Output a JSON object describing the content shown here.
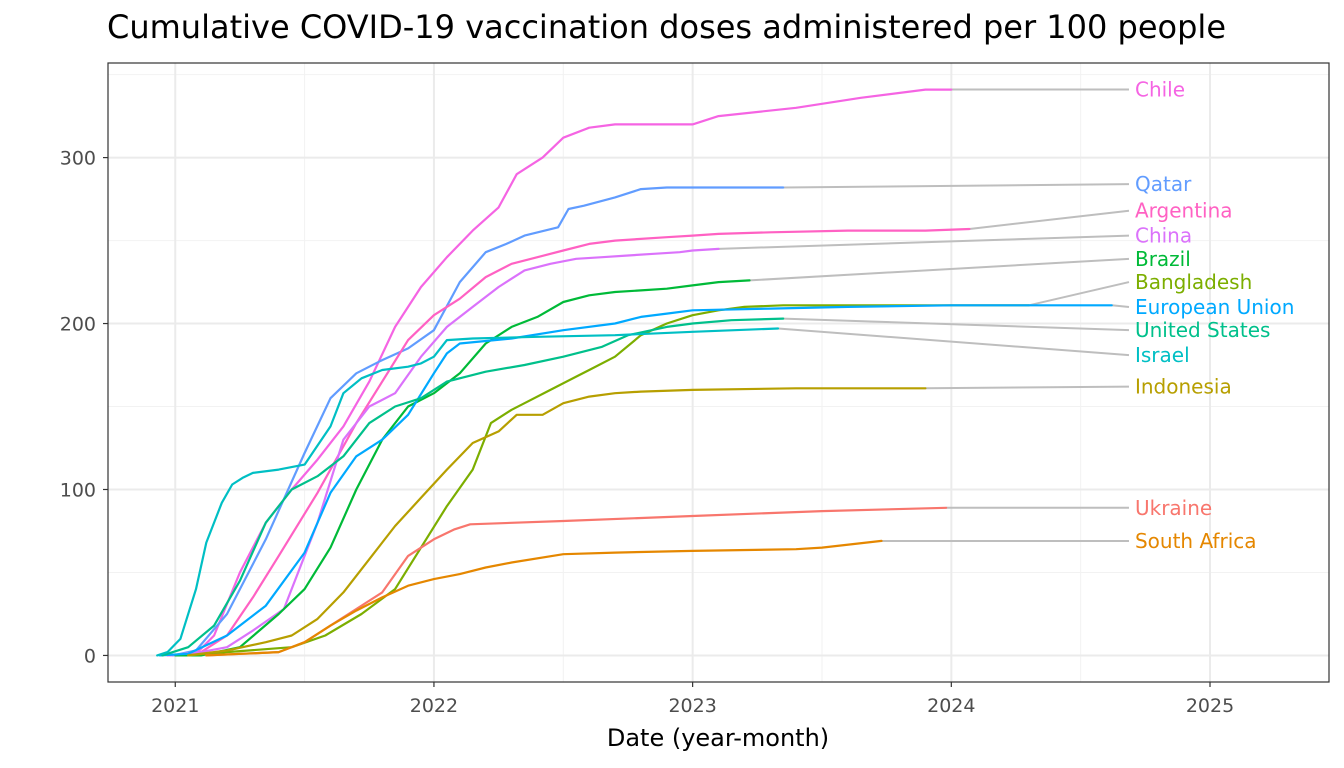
{
  "chart_data": {
    "type": "line",
    "title": "Cumulative COVID-19 vaccination doses administered per 100 people",
    "xlabel": "Date (year-month)",
    "ylabel": "",
    "xlim": [
      2020.74,
      2025.46
    ],
    "ylim": [
      -16,
      357
    ],
    "x_ticks": [
      2021,
      2022,
      2023,
      2024,
      2025
    ],
    "x_tick_labels": [
      "2021",
      "2022",
      "2023",
      "2024",
      "2025"
    ],
    "y_ticks": [
      0,
      100,
      200,
      300
    ],
    "y_tick_labels": [
      "0",
      "100",
      "200",
      "300"
    ],
    "grid": true,
    "label_column_x": 2024.71,
    "series": [
      {
        "name": "Chile",
        "color": "#F564E3",
        "x": [
          2020.97,
          2021.08,
          2021.15,
          2021.25,
          2021.35,
          2021.45,
          2021.55,
          2021.65,
          2021.75,
          2021.85,
          2021.95,
          2022.05,
          2022.15,
          2022.25,
          2022.32,
          2022.42,
          2022.5,
          2022.6,
          2022.7,
          2022.8,
          2023.0,
          2023.1,
          2023.4,
          2023.65,
          2023.9,
          2024.0
        ],
        "values": [
          0,
          1,
          12,
          50,
          80,
          100,
          118,
          138,
          165,
          198,
          222,
          240,
          256,
          270,
          290,
          300,
          312,
          318,
          320,
          320,
          320,
          325,
          330,
          336,
          341,
          341
        ],
        "label_y": 341
      },
      {
        "name": "Qatar",
        "color": "#619CFF",
        "x": [
          2020.99,
          2021.08,
          2021.2,
          2021.35,
          2021.5,
          2021.6,
          2021.7,
          2021.8,
          2021.9,
          2022.0,
          2022.1,
          2022.2,
          2022.28,
          2022.35,
          2022.48,
          2022.52,
          2022.58,
          2022.7,
          2022.8,
          2022.9,
          2023.0,
          2023.35
        ],
        "values": [
          0,
          3,
          25,
          70,
          122,
          155,
          170,
          178,
          185,
          196,
          225,
          243,
          248,
          253,
          258,
          269,
          271,
          276,
          281,
          282,
          282,
          282
        ],
        "label_y": 284
      },
      {
        "name": "Argentina",
        "color": "#FF61C3",
        "x": [
          2021.0,
          2021.1,
          2021.2,
          2021.3,
          2021.4,
          2021.55,
          2021.7,
          2021.8,
          2021.9,
          2022.0,
          2022.1,
          2022.2,
          2022.3,
          2022.4,
          2022.5,
          2022.6,
          2022.7,
          2022.9,
          2023.0,
          2023.1,
          2023.3,
          2023.6,
          2023.9,
          2024.07
        ],
        "values": [
          0,
          2,
          12,
          35,
          60,
          98,
          140,
          165,
          190,
          205,
          215,
          228,
          236,
          240,
          244,
          248,
          250,
          252,
          253,
          254,
          255,
          256,
          256,
          257
        ],
        "label_y": 268
      },
      {
        "name": "China",
        "color": "#DB72FB",
        "x": [
          2020.98,
          2021.1,
          2021.2,
          2021.3,
          2021.42,
          2021.55,
          2021.65,
          2021.75,
          2021.85,
          2021.95,
          2022.05,
          2022.15,
          2022.25,
          2022.35,
          2022.45,
          2022.55,
          2022.65,
          2022.75,
          2022.85,
          2022.95,
          2023.0,
          2023.1
        ],
        "values": [
          0,
          2,
          5,
          15,
          28,
          80,
          130,
          150,
          158,
          180,
          198,
          210,
          222,
          232,
          236,
          239,
          240,
          241,
          242,
          243,
          244,
          245
        ],
        "label_y": 253
      },
      {
        "name": "Brazil",
        "color": "#00BA38",
        "x": [
          2021.0,
          2021.1,
          2021.25,
          2021.4,
          2021.5,
          2021.6,
          2021.7,
          2021.8,
          2021.9,
          2022.0,
          2022.1,
          2022.2,
          2022.3,
          2022.4,
          2022.5,
          2022.6,
          2022.7,
          2022.8,
          2022.9,
          2023.0,
          2023.1,
          2023.22
        ],
        "values": [
          0,
          0,
          5,
          25,
          40,
          65,
          100,
          130,
          150,
          158,
          170,
          188,
          198,
          204,
          213,
          217,
          219,
          220,
          221,
          223,
          225,
          226
        ],
        "label_y": 239
      },
      {
        "name": "Bangladesh",
        "color": "#7CAE00",
        "x": [
          2021.05,
          2021.2,
          2021.45,
          2021.58,
          2021.72,
          2021.85,
          2021.95,
          2022.05,
          2022.15,
          2022.22,
          2022.3,
          2022.35,
          2022.45,
          2022.55,
          2022.6,
          2022.7,
          2022.8,
          2022.9,
          2023.0,
          2023.1,
          2023.2,
          2023.35,
          2023.6,
          2024.0,
          2024.3
        ],
        "values": [
          0,
          2,
          5,
          12,
          25,
          40,
          65,
          90,
          112,
          140,
          148,
          152,
          160,
          168,
          172,
          180,
          193,
          200,
          205,
          208,
          210,
          211,
          211,
          211,
          211
        ],
        "label_y": 225
      },
      {
        "name": "European Union",
        "color": "#00A9FF",
        "x": [
          2020.94,
          2021.05,
          2021.2,
          2021.35,
          2021.5,
          2021.6,
          2021.7,
          2021.8,
          2021.9,
          2022.0,
          2022.05,
          2022.1,
          2022.3,
          2022.5,
          2022.7,
          2022.8,
          2022.9,
          2023.0,
          2023.3,
          2023.6,
          2024.0,
          2024.3,
          2024.62
        ],
        "values": [
          0,
          1,
          12,
          30,
          62,
          98,
          120,
          130,
          145,
          170,
          182,
          188,
          191,
          196,
          200,
          204,
          206,
          208,
          209,
          210,
          211,
          211,
          211
        ],
        "label_y": 210
      },
      {
        "name": "United States",
        "color": "#00C08B",
        "x": [
          2020.95,
          2021.05,
          2021.15,
          2021.25,
          2021.35,
          2021.45,
          2021.55,
          2021.65,
          2021.75,
          2021.85,
          2021.95,
          2022.05,
          2022.2,
          2022.35,
          2022.5,
          2022.65,
          2022.75,
          2022.9,
          2023.0,
          2023.15,
          2023.35
        ],
        "values": [
          0,
          5,
          18,
          45,
          80,
          100,
          108,
          120,
          140,
          150,
          155,
          165,
          171,
          175,
          180,
          186,
          193,
          198,
          200,
          202,
          203
        ],
        "label_y": 196
      },
      {
        "name": "Israel",
        "color": "#00BFC4",
        "x": [
          2020.93,
          2020.97,
          2021.02,
          2021.08,
          2021.12,
          2021.18,
          2021.22,
          2021.26,
          2021.3,
          2021.4,
          2021.5,
          2021.6,
          2021.65,
          2021.72,
          2021.8,
          2021.9,
          2021.95,
          2022.0,
          2022.05,
          2022.15,
          2022.4,
          2022.7,
          2023.0,
          2023.33
        ],
        "values": [
          0,
          2,
          10,
          40,
          68,
          92,
          103,
          107,
          110,
          112,
          115,
          138,
          158,
          167,
          172,
          174,
          176,
          180,
          190,
          191,
          192,
          193,
          195,
          197
        ],
        "label_y": 181
      },
      {
        "name": "Indonesia",
        "color": "#B79F00",
        "x": [
          2021.05,
          2021.2,
          2021.35,
          2021.45,
          2021.55,
          2021.65,
          2021.75,
          2021.85,
          2021.95,
          2022.05,
          2022.15,
          2022.25,
          2022.32,
          2022.42,
          2022.5,
          2022.6,
          2022.7,
          2022.8,
          2023.0,
          2023.4,
          2023.9
        ],
        "values": [
          0,
          3,
          8,
          12,
          22,
          38,
          58,
          78,
          95,
          112,
          128,
          135,
          145,
          145,
          152,
          156,
          158,
          159,
          160,
          161,
          161
        ],
        "label_y": 162
      },
      {
        "name": "Ukraine",
        "color": "#F8766D",
        "x": [
          2021.12,
          2021.4,
          2021.5,
          2021.6,
          2021.7,
          2021.8,
          2021.9,
          2022.0,
          2022.08,
          2022.14,
          2022.5,
          2023.0,
          2023.5,
          2023.98
        ],
        "values": [
          0,
          2,
          8,
          18,
          28,
          38,
          60,
          70,
          76,
          79,
          81,
          84,
          87,
          89
        ],
        "label_y": 89
      },
      {
        "name": "South Africa",
        "color": "#E58700",
        "x": [
          2021.12,
          2021.4,
          2021.5,
          2021.6,
          2021.7,
          2021.8,
          2021.9,
          2022.0,
          2022.1,
          2022.2,
          2022.3,
          2022.5,
          2022.7,
          2023.0,
          2023.4,
          2023.5,
          2023.73
        ],
        "values": [
          0,
          2,
          8,
          18,
          27,
          35,
          42,
          46,
          49,
          53,
          56,
          61,
          62,
          63,
          64,
          65,
          69
        ],
        "label_y": 69
      }
    ]
  }
}
